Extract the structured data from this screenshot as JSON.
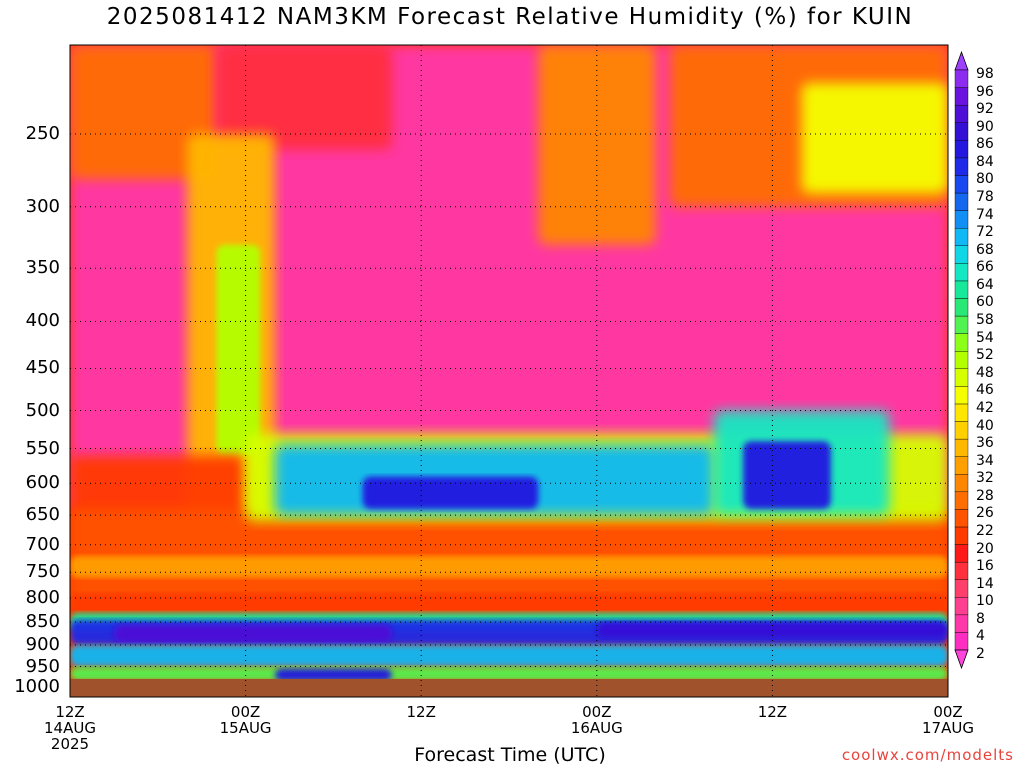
{
  "title": "2025081412 NAM3KM Forecast Relative Humidity (%) for KUIN",
  "xlabel": "Forecast Time (UTC)",
  "credit": "coolwx.com/modelts",
  "x_ticks": [
    {
      "hour": 0,
      "lines": [
        "12Z",
        "14AUG",
        "2025"
      ]
    },
    {
      "hour": 12,
      "lines": [
        "00Z",
        "15AUG",
        ""
      ]
    },
    {
      "hour": 24,
      "lines": [
        "12Z",
        "",
        ""
      ]
    },
    {
      "hour": 36,
      "lines": [
        "00Z",
        "16AUG",
        ""
      ]
    },
    {
      "hour": 48,
      "lines": [
        "12Z",
        "",
        ""
      ]
    },
    {
      "hour": 60,
      "lines": [
        "00Z",
        "17AUG",
        ""
      ]
    }
  ],
  "y_ticks": [
    250,
    300,
    350,
    400,
    450,
    500,
    550,
    600,
    650,
    700,
    750,
    800,
    850,
    900,
    950,
    1000
  ],
  "colorbar": {
    "levels": [
      2,
      4,
      8,
      10,
      14,
      16,
      20,
      22,
      26,
      28,
      32,
      34,
      36,
      40,
      42,
      46,
      48,
      52,
      54,
      58,
      60,
      64,
      66,
      68,
      72,
      74,
      78,
      80,
      84,
      86,
      90,
      92,
      96,
      98
    ],
    "colors": [
      "#ff44dd",
      "#ff2ec2",
      "#ff38aa",
      "#ff3f8f",
      "#ff3f6b",
      "#ff2f3e",
      "#ff1a1a",
      "#ff3a00",
      "#ff5300",
      "#ff6d00",
      "#ff8600",
      "#ff9f00",
      "#ffb800",
      "#ffd000",
      "#ffe600",
      "#f5ff00",
      "#d6ff00",
      "#b3ff00",
      "#8cff19",
      "#52f250",
      "#29e875",
      "#18e89a",
      "#13e8c3",
      "#10d6e6",
      "#10b8f5",
      "#128ff5",
      "#1468f0",
      "#1a48f0",
      "#1f2ae8",
      "#2418e0",
      "#3410d6",
      "#4e10d6",
      "#6a12e0",
      "#8c2cf0",
      "#a040ff"
    ]
  },
  "chart_data": {
    "type": "heatmap",
    "title": "2025081412 NAM3KM Forecast Relative Humidity (%) for KUIN",
    "xlabel": "Forecast Time (UTC)",
    "ylabel": "",
    "x_hours": [
      0,
      60
    ],
    "y_pressure": [
      200,
      1000
    ],
    "y_scale": "log",
    "grid": true,
    "colorbar_units": "%",
    "ground_level_hPa": 980,
    "features": [
      {
        "region": "0-12h, 200-700hPa",
        "rh_range": [
          8,
          30
        ]
      },
      {
        "region": "10-14h, 330-650hPa",
        "rh_range": [
          45,
          75
        ]
      },
      {
        "region": "14-44h, 550-660hPa",
        "rh_range": [
          65,
          92
        ]
      },
      {
        "region": "0-60h, 840-900hPa",
        "rh_range": [
          80,
          92
        ]
      },
      {
        "region": "44-56h, 500-650hPa",
        "rh_range": [
          70,
          92
        ]
      },
      {
        "region": "46-60h, 200-300hPa",
        "rh_range": [
          30,
          60
        ]
      }
    ]
  }
}
